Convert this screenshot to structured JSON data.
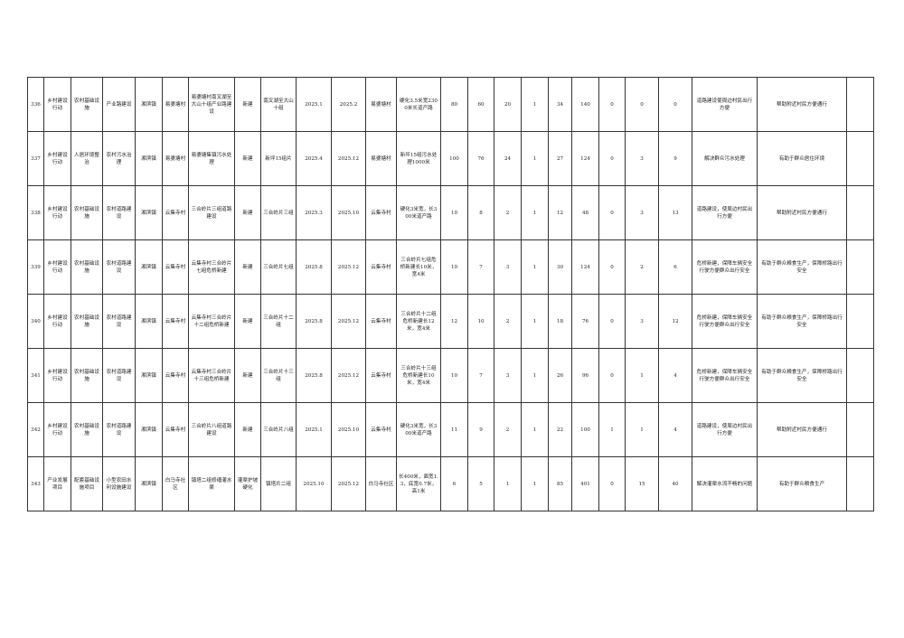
{
  "rows": [
    [
      "336",
      "乡村建设行动",
      "农村基础设施",
      "产业路建设",
      "湘滨镇",
      "易婆塘村",
      "易婆塘村南叉湖至大山十组产业路建设",
      "新建",
      "南叉湖至大山十组",
      "2025.1",
      "2025.2",
      "易婆塘村",
      "硬化3.5米宽2300米长道产路",
      "80",
      "60",
      "20",
      "1",
      "34",
      "140",
      "0",
      "0",
      "0",
      "道路建设使周边村民出行方便",
      "帮助附近村民方便通行",
      ""
    ],
    [
      "337",
      "乡村建设行动",
      "人居环境整治",
      "农村污水治理",
      "湘滨镇",
      "易婆塘村",
      "易婆塘集镇污水处理",
      "新建",
      "新坪15组片",
      "2025.4",
      "2025.12",
      "易婆塘村",
      "新坪15组污水处理1000米",
      "100",
      "76",
      "24",
      "1",
      "27",
      "124",
      "0",
      "3",
      "9",
      "解决群众污水处理",
      "有助于群众居住环境",
      ""
    ],
    [
      "338",
      "乡村建设行动",
      "农村基础设施",
      "农村道路建设",
      "湘滨镇",
      "云集寺村",
      "三合岭片三组道路建设",
      "新建",
      "三合岭片三组",
      "2025.3",
      "2025.10",
      "云集寺村",
      "硬化3米宽，长300米道产路",
      "10",
      "8",
      "2",
      "1",
      "12",
      "48",
      "0",
      "3",
      "13",
      "道路建设，使周边村民出行方便",
      "帮助附近村民方便通行",
      ""
    ],
    [
      "339",
      "乡村建设行动",
      "农村基础设施",
      "农村道路建设",
      "湘滨镇",
      "云集寺村",
      "云集寺村三合岭片七组危桥新建",
      "新建",
      "三合岭片七组",
      "2025.8",
      "2025.12",
      "云集寺村",
      "三合岭片七组危桥新建长10米，宽4米",
      "10",
      "7",
      "3",
      "1",
      "30",
      "124",
      "0",
      "2",
      "6",
      "危桥新建，保障车辆安全行驶方便群众出行安全",
      "有助于群众粮食生产，保障桥路出行安全",
      ""
    ],
    [
      "340",
      "乡村建设行动",
      "农村基础设施",
      "农村道路建设",
      "湘滨镇",
      "云集寺村",
      "云集寺村三合岭片十二组危桥新建",
      "新建",
      "三合岭片十二组",
      "2025.8",
      "2025.12",
      "云集寺村",
      "三合岭片十二组危桥新建长12米，宽4米",
      "12",
      "10",
      "2",
      "1",
      "18",
      "76",
      "0",
      "3",
      "12",
      "危桥新建，保障车辆安全行驶方便群众出行安全",
      "有助于群众粮食生产，保障桥路出行安全",
      ""
    ],
    [
      "341",
      "乡村建设行动",
      "农村基础设施",
      "农村道路建设",
      "湘滨镇",
      "云集寺村",
      "云集寺村三合岭片十三组危桥新建",
      "新建",
      "三合岭片十三组",
      "2025.8",
      "2025.12",
      "云集寺村",
      "三合岭片十三组危桥新建长10米，宽4米",
      "10",
      "7",
      "3",
      "1",
      "26",
      "96",
      "0",
      "1",
      "4",
      "危桥新建，保障车辆安全行驶方便群众出行安全",
      "有助于群众粮食生产，保障桥路出行安全",
      ""
    ],
    [
      "342",
      "乡村建设行动",
      "农村基础设施",
      "农村道路建设",
      "湘滨镇",
      "云集寺村",
      "三合岭片八组道路建设",
      "新建",
      "三合岭片八组",
      "2025.1",
      "2025.10",
      "云集寺村",
      "硬化3米宽，长300米道产路",
      "11",
      "9",
      "2",
      "1",
      "22",
      "100",
      "1",
      "1",
      "4",
      "道路建设，使周边村民出行方便",
      "帮助附近村民方便通行",
      ""
    ],
    [
      "343",
      "产业发展项目",
      "配套基础设施项目",
      "小型农田水利设施建设",
      "湘滨镇",
      "白马寺社区",
      "镇塔二组修缮灌水渠",
      "灌渠护坡硬化",
      "镇塔片二组",
      "2025.10",
      "2025.12",
      "白马寺社区",
      "长400米，面宽1.3，底宽0.7米，高1米",
      "6",
      "5",
      "1",
      "1",
      "85",
      "401",
      "0",
      "15",
      "40",
      "解决灌渠水流不畅的问题",
      "有助于群众粮食生产",
      ""
    ]
  ]
}
